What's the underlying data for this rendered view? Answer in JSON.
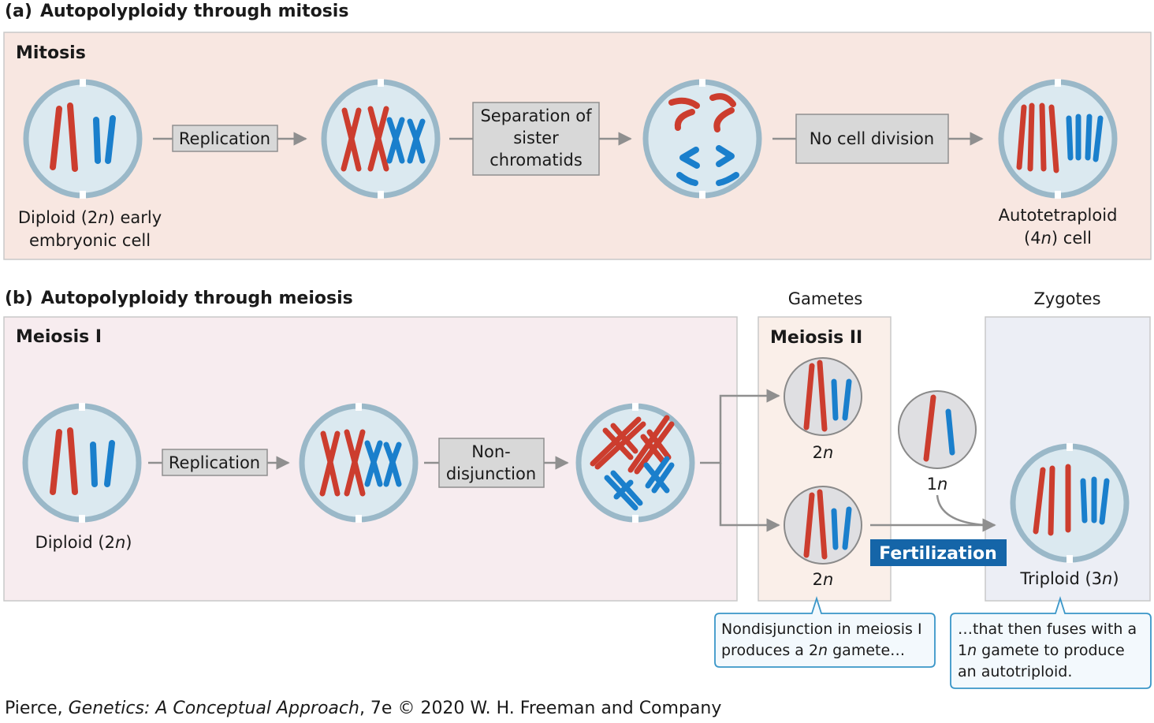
{
  "sections": {
    "a_label": "(a)",
    "a_title": "Autopolyploidy through mitosis",
    "b_label": "(b)",
    "b_title": "Autopolyploidy through meiosis"
  },
  "panels": {
    "mitosis": "Mitosis",
    "meiosis1": "Meiosis I",
    "meiosis2": "Meiosis II",
    "gametes_header": "Gametes",
    "zygotes_header": "Zygotes"
  },
  "steps_a": {
    "replication": "Replication",
    "separation_line1": "Separation of",
    "separation_line2": "sister",
    "separation_line3": "chromatids",
    "no_division": "No cell division"
  },
  "steps_b": {
    "replication": "Replication",
    "nondisjunction_line1": "Non-",
    "nondisjunction_line2": "disjunction",
    "fertilization": "Fertilization"
  },
  "cell_labels": {
    "diploid_early_1_pre": "Diploid (2",
    "diploid_early_1_n": "n",
    "diploid_early_1_post": ") early",
    "diploid_early_2": "embryonic cell",
    "autotetraploid_1": "Autotetraploid",
    "autotetraploid_2_pre": "(4",
    "autotetraploid_2_n": "n",
    "autotetraploid_2_post": ") cell",
    "diploid_pre": "Diploid (2",
    "diploid_n": "n",
    "diploid_post": ")",
    "gamete_top_num": "2",
    "gamete_top_n": "n",
    "gamete_bottom_num": "2",
    "gamete_bottom_n": "n",
    "haploid_num": "1",
    "haploid_n": "n",
    "triploid_pre": "Triploid (3",
    "triploid_n": "n",
    "triploid_post": ")"
  },
  "callouts": {
    "left_line1": "Nondisjunction in meiosis I",
    "left_line2_pre": "produces a 2",
    "left_line2_n": "n",
    "left_line2_post": " gamete…",
    "right_line1": "…that then fuses with a",
    "right_line2_pre": "1",
    "right_line2_n": "n",
    "right_line2_post": " gamete to produce",
    "right_line3": "an autotriploid."
  },
  "credit": {
    "author": "Pierce, ",
    "book": "Genetics: A Conceptual Approach",
    "rest": ", 7e © 2020 W. H. Freeman and Company"
  },
  "colors": {
    "red_chromosome": "#cc3d2e",
    "blue_chromosome": "#1a7fcc",
    "cell_fill": "#dbe9f0",
    "cell_border": "#9ab8c8",
    "mitosis_panel": "#f8e7e1",
    "meiosis1_panel": "#f7ecef",
    "meiosis2_panel": "#faefe9",
    "zygote_panel": "#eceef5",
    "step_box": "#d8d8d8",
    "fertilization": "#1565a8",
    "arrow": "#8f8f8f",
    "callout_border": "#3a96c8",
    "callout_fill": "#f3f9fd"
  }
}
